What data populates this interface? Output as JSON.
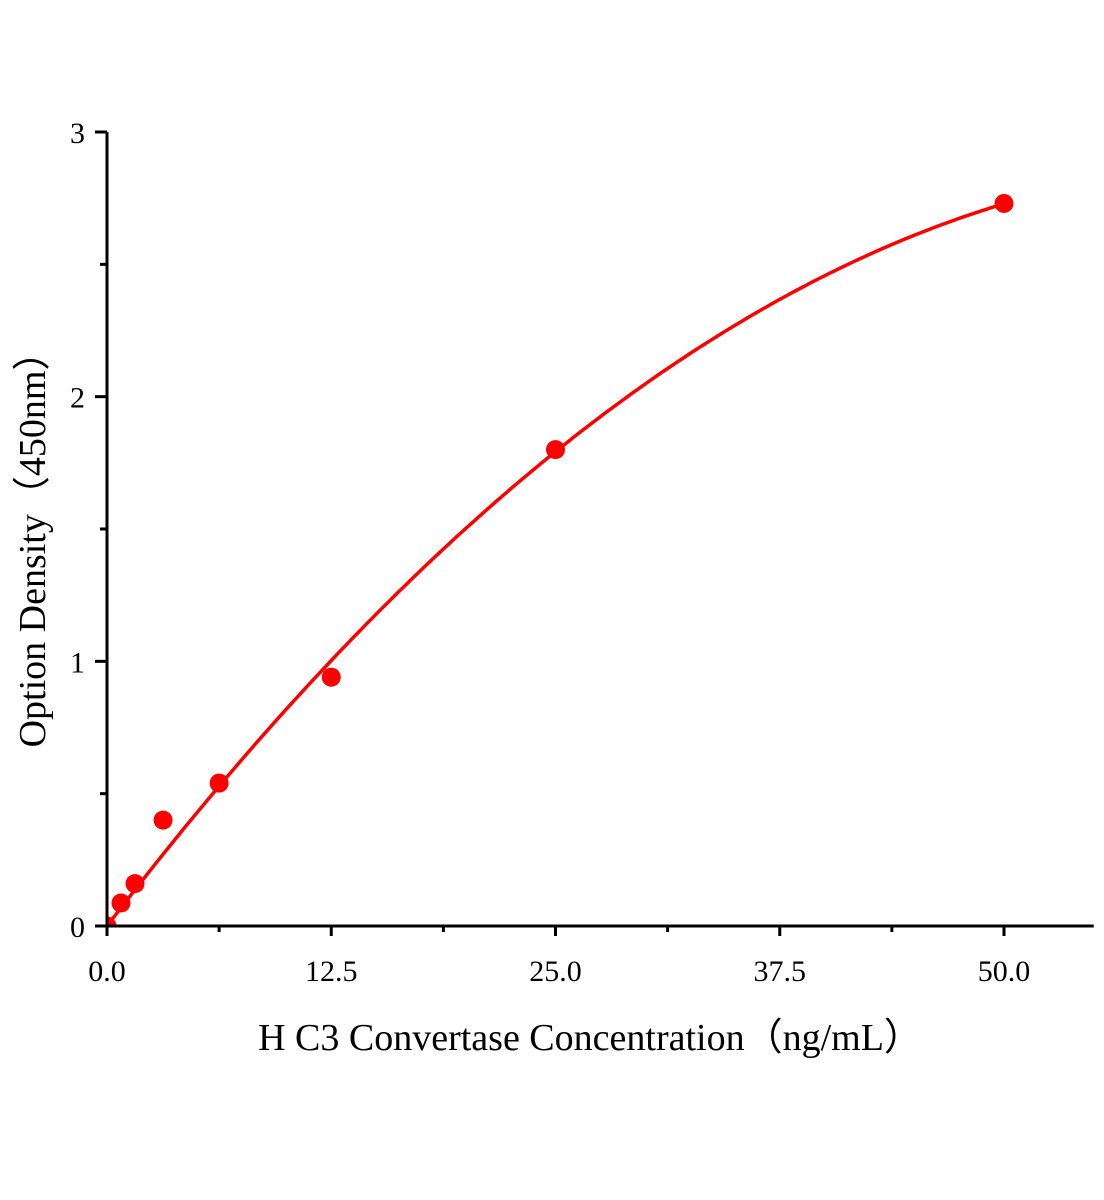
{
  "chart_data": {
    "type": "scatter",
    "xlabel": "H C3 Convertase Concentration（ng/mL）",
    "ylabel": "Option Density（450nm）",
    "xlim": [
      0,
      55
    ],
    "ylim": [
      0,
      3
    ],
    "x_ticks": [
      "0.0",
      "12.5",
      "25.0",
      "37.5",
      "50.0"
    ],
    "x_tick_values": [
      0,
      12.5,
      25,
      37.5,
      50
    ],
    "x_minor_ticks": [
      6.25,
      18.75,
      31.25,
      43.75
    ],
    "y_ticks": [
      "0",
      "1",
      "2",
      "3"
    ],
    "y_tick_values": [
      0,
      1,
      2,
      3
    ],
    "y_minor_ticks": [
      0.5,
      1.5,
      2.5
    ],
    "grid": false,
    "color": "#ff0000",
    "series": [
      {
        "x": [
          0,
          0.78,
          1.56,
          3.125,
          6.25,
          12.5,
          25,
          50
        ],
        "y": [
          0.0,
          0.087,
          0.16,
          0.4,
          0.54,
          0.94,
          1.8,
          2.73
        ],
        "fit_line": true
      }
    ]
  }
}
